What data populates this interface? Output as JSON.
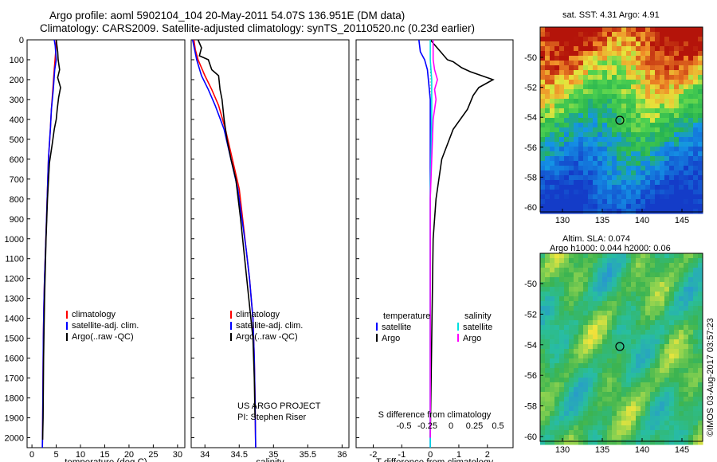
{
  "header": {
    "title_line1": "Argo profile: aoml 5902104_104 20-May-2011 54.07S 136.951E (DM data)",
    "title_line2": "Climatology: CARS2009. Satellite-adjusted climatology: synTS_20110520.nc (0.23d earlier)"
  },
  "colors": {
    "climatology": "#ff0000",
    "satellite": "#0000ff",
    "argo": "#000000",
    "sat_salinity": "#00e0e0",
    "argo_salinity": "#ff00ff"
  },
  "depth_axis": {
    "ticks": [
      0,
      100,
      200,
      300,
      400,
      500,
      600,
      700,
      800,
      900,
      1000,
      1100,
      1200,
      1300,
      1400,
      1500,
      1600,
      1700,
      1800,
      1900,
      2000
    ],
    "range": [
      0,
      2050
    ]
  },
  "chart_data": [
    {
      "type": "line",
      "xlabel": "temperature (deg C)",
      "xlim": [
        -1,
        31.5
      ],
      "xticks": [
        "0",
        "5",
        "10",
        "15",
        "20",
        "25",
        "30"
      ],
      "ylim": [
        0,
        2050
      ],
      "legend": [
        "climatology",
        "satellite-adj. clim.",
        "Argo(..raw -QC)"
      ],
      "series": [
        {
          "name": "climatology",
          "x": [
            5.0,
            4.9,
            4.6,
            4.3,
            4.0,
            3.8,
            3.4,
            3.2,
            3.0,
            2.8,
            2.6,
            2.45,
            2.35,
            2.3,
            2.25,
            2.2,
            2.15
          ],
          "y": [
            0,
            60,
            150,
            250,
            350,
            450,
            600,
            750,
            900,
            1050,
            1200,
            1350,
            1500,
            1650,
            1800,
            1950,
            2050
          ]
        },
        {
          "name": "satellite-adj. clim.",
          "x": [
            4.6,
            4.8,
            5.0,
            4.7,
            4.4,
            4.0,
            3.8,
            3.4,
            3.2,
            3.0,
            2.8,
            2.6,
            2.45,
            2.35,
            2.3,
            2.25,
            2.2,
            2.15
          ],
          "y": [
            0,
            30,
            100,
            150,
            250,
            350,
            450,
            600,
            750,
            900,
            1050,
            1200,
            1350,
            1500,
            1650,
            1800,
            1950,
            2050
          ]
        },
        {
          "name": "Argo(..raw -QC)",
          "x": [
            5.0,
            5.3,
            5.4,
            5.7,
            5.3,
            5.9,
            5.5,
            5.2,
            5.0,
            4.6,
            4.2,
            3.6,
            3.2,
            2.9,
            2.6,
            2.4,
            2.3,
            2.2
          ],
          "y": [
            0,
            60,
            100,
            150,
            190,
            240,
            290,
            350,
            400,
            450,
            520,
            620,
            800,
            1000,
            1300,
            1600,
            1900,
            2010
          ]
        }
      ]
    },
    {
      "type": "line",
      "xlabel": "salinity",
      "xlim": [
        33.8,
        36.1
      ],
      "xticks": [
        "34",
        "34.5",
        "35",
        "35.5",
        "36"
      ],
      "ylim": [
        0,
        2050
      ],
      "legend": [
        "climatology",
        "satellite-adj. clim.",
        "Argo(..raw -QC)"
      ],
      "annotations": [
        "US ARGO PROJECT",
        "PI: Stephen Riser"
      ],
      "series": [
        {
          "name": "climatology",
          "x": [
            33.84,
            33.86,
            33.9,
            34.0,
            34.1,
            34.2,
            34.3,
            34.4,
            34.5,
            34.55,
            34.6,
            34.65,
            34.7,
            34.72,
            34.73,
            34.74
          ],
          "y": [
            0,
            50,
            100,
            180,
            250,
            330,
            450,
            600,
            750,
            900,
            1050,
            1200,
            1400,
            1600,
            1800,
            2050
          ]
        },
        {
          "name": "satellite-adj. clim.",
          "x": [
            33.82,
            33.85,
            33.88,
            33.95,
            34.05,
            34.15,
            34.28,
            34.38,
            34.48,
            34.54,
            34.6,
            34.65,
            34.7,
            34.72,
            34.73,
            34.74
          ],
          "y": [
            0,
            50,
            100,
            180,
            250,
            330,
            450,
            600,
            750,
            900,
            1050,
            1200,
            1400,
            1600,
            1800,
            2050
          ]
        },
        {
          "name": "Argo(..raw -QC)",
          "x": [
            33.9,
            33.95,
            33.92,
            34.05,
            34.1,
            34.2,
            34.22,
            34.25,
            34.28,
            34.32,
            34.38,
            34.45,
            34.52,
            34.58,
            34.64,
            34.7,
            34.72,
            34.73
          ],
          "y": [
            0,
            40,
            80,
            100,
            150,
            180,
            250,
            300,
            400,
            500,
            600,
            700,
            900,
            1100,
            1300,
            1500,
            1700,
            1900
          ]
        }
      ]
    },
    {
      "type": "line",
      "xlabel": "T difference from climatology",
      "xlabel_top": "S difference from climatology",
      "xlim": [
        -2.6,
        2.9
      ],
      "xticks": [
        "-2",
        "-1",
        "0",
        "1",
        "2"
      ],
      "xticks_top": [
        "-0.5",
        "-0.25",
        "0",
        "0.25",
        "0.5"
      ],
      "ylim": [
        0,
        2050
      ],
      "legend_left_title": "temperature",
      "legend_right_title": "salinity",
      "legend": [
        "satellite",
        "Argo",
        "satellite",
        "Argo"
      ],
      "series": [
        {
          "name": "satellite",
          "x": [
            -0.4,
            -0.35,
            -0.2,
            -0.1,
            0.0,
            0.0,
            0.0,
            0.0,
            0.0
          ],
          "y": [
            0,
            60,
            100,
            150,
            300,
            600,
            1000,
            1500,
            2050
          ]
        },
        {
          "name": "Argo",
          "x": [
            0.0,
            0.3,
            0.6,
            0.8,
            1.1,
            1.4,
            2.2,
            1.7,
            1.5,
            1.3,
            0.8,
            0.4,
            0.2,
            0.1,
            0.05,
            0.0
          ],
          "y": [
            0,
            50,
            100,
            110,
            140,
            160,
            200,
            240,
            280,
            350,
            450,
            600,
            800,
            1000,
            1500,
            2000
          ]
        },
        {
          "name": "satellite",
          "x": [
            0.0,
            0.0,
            0.05,
            0.05,
            0.0,
            0.0,
            0.0
          ],
          "y": [
            0,
            100,
            200,
            400,
            800,
            1500,
            2050
          ]
        },
        {
          "name": "Argo",
          "x": [
            0.1,
            0.1,
            0.15,
            0.25,
            0.15,
            0.2,
            0.1,
            0.0,
            0.0
          ],
          "y": [
            0,
            100,
            150,
            200,
            250,
            300,
            400,
            800,
            2000
          ]
        }
      ]
    }
  ],
  "maps": [
    {
      "label": "sat. SST: 4.31  Argo: 4.91",
      "xticks": [
        "130",
        "135",
        "140",
        "145"
      ],
      "yticks": [
        "-50",
        "-52",
        "-54",
        "-56",
        "-58",
        "-60"
      ]
    },
    {
      "label_line1": "Altim. SLA: 0.074",
      "label_line2": "Argo h1000: 0.044 h2000: 0.06",
      "xticks": [
        "130",
        "135",
        "140",
        "145"
      ],
      "yticks": [
        "-50",
        "-52",
        "-54",
        "-56",
        "-58",
        "-60"
      ]
    }
  ],
  "stamp": "©IMOS 03-Aug-2017 03:57:23"
}
